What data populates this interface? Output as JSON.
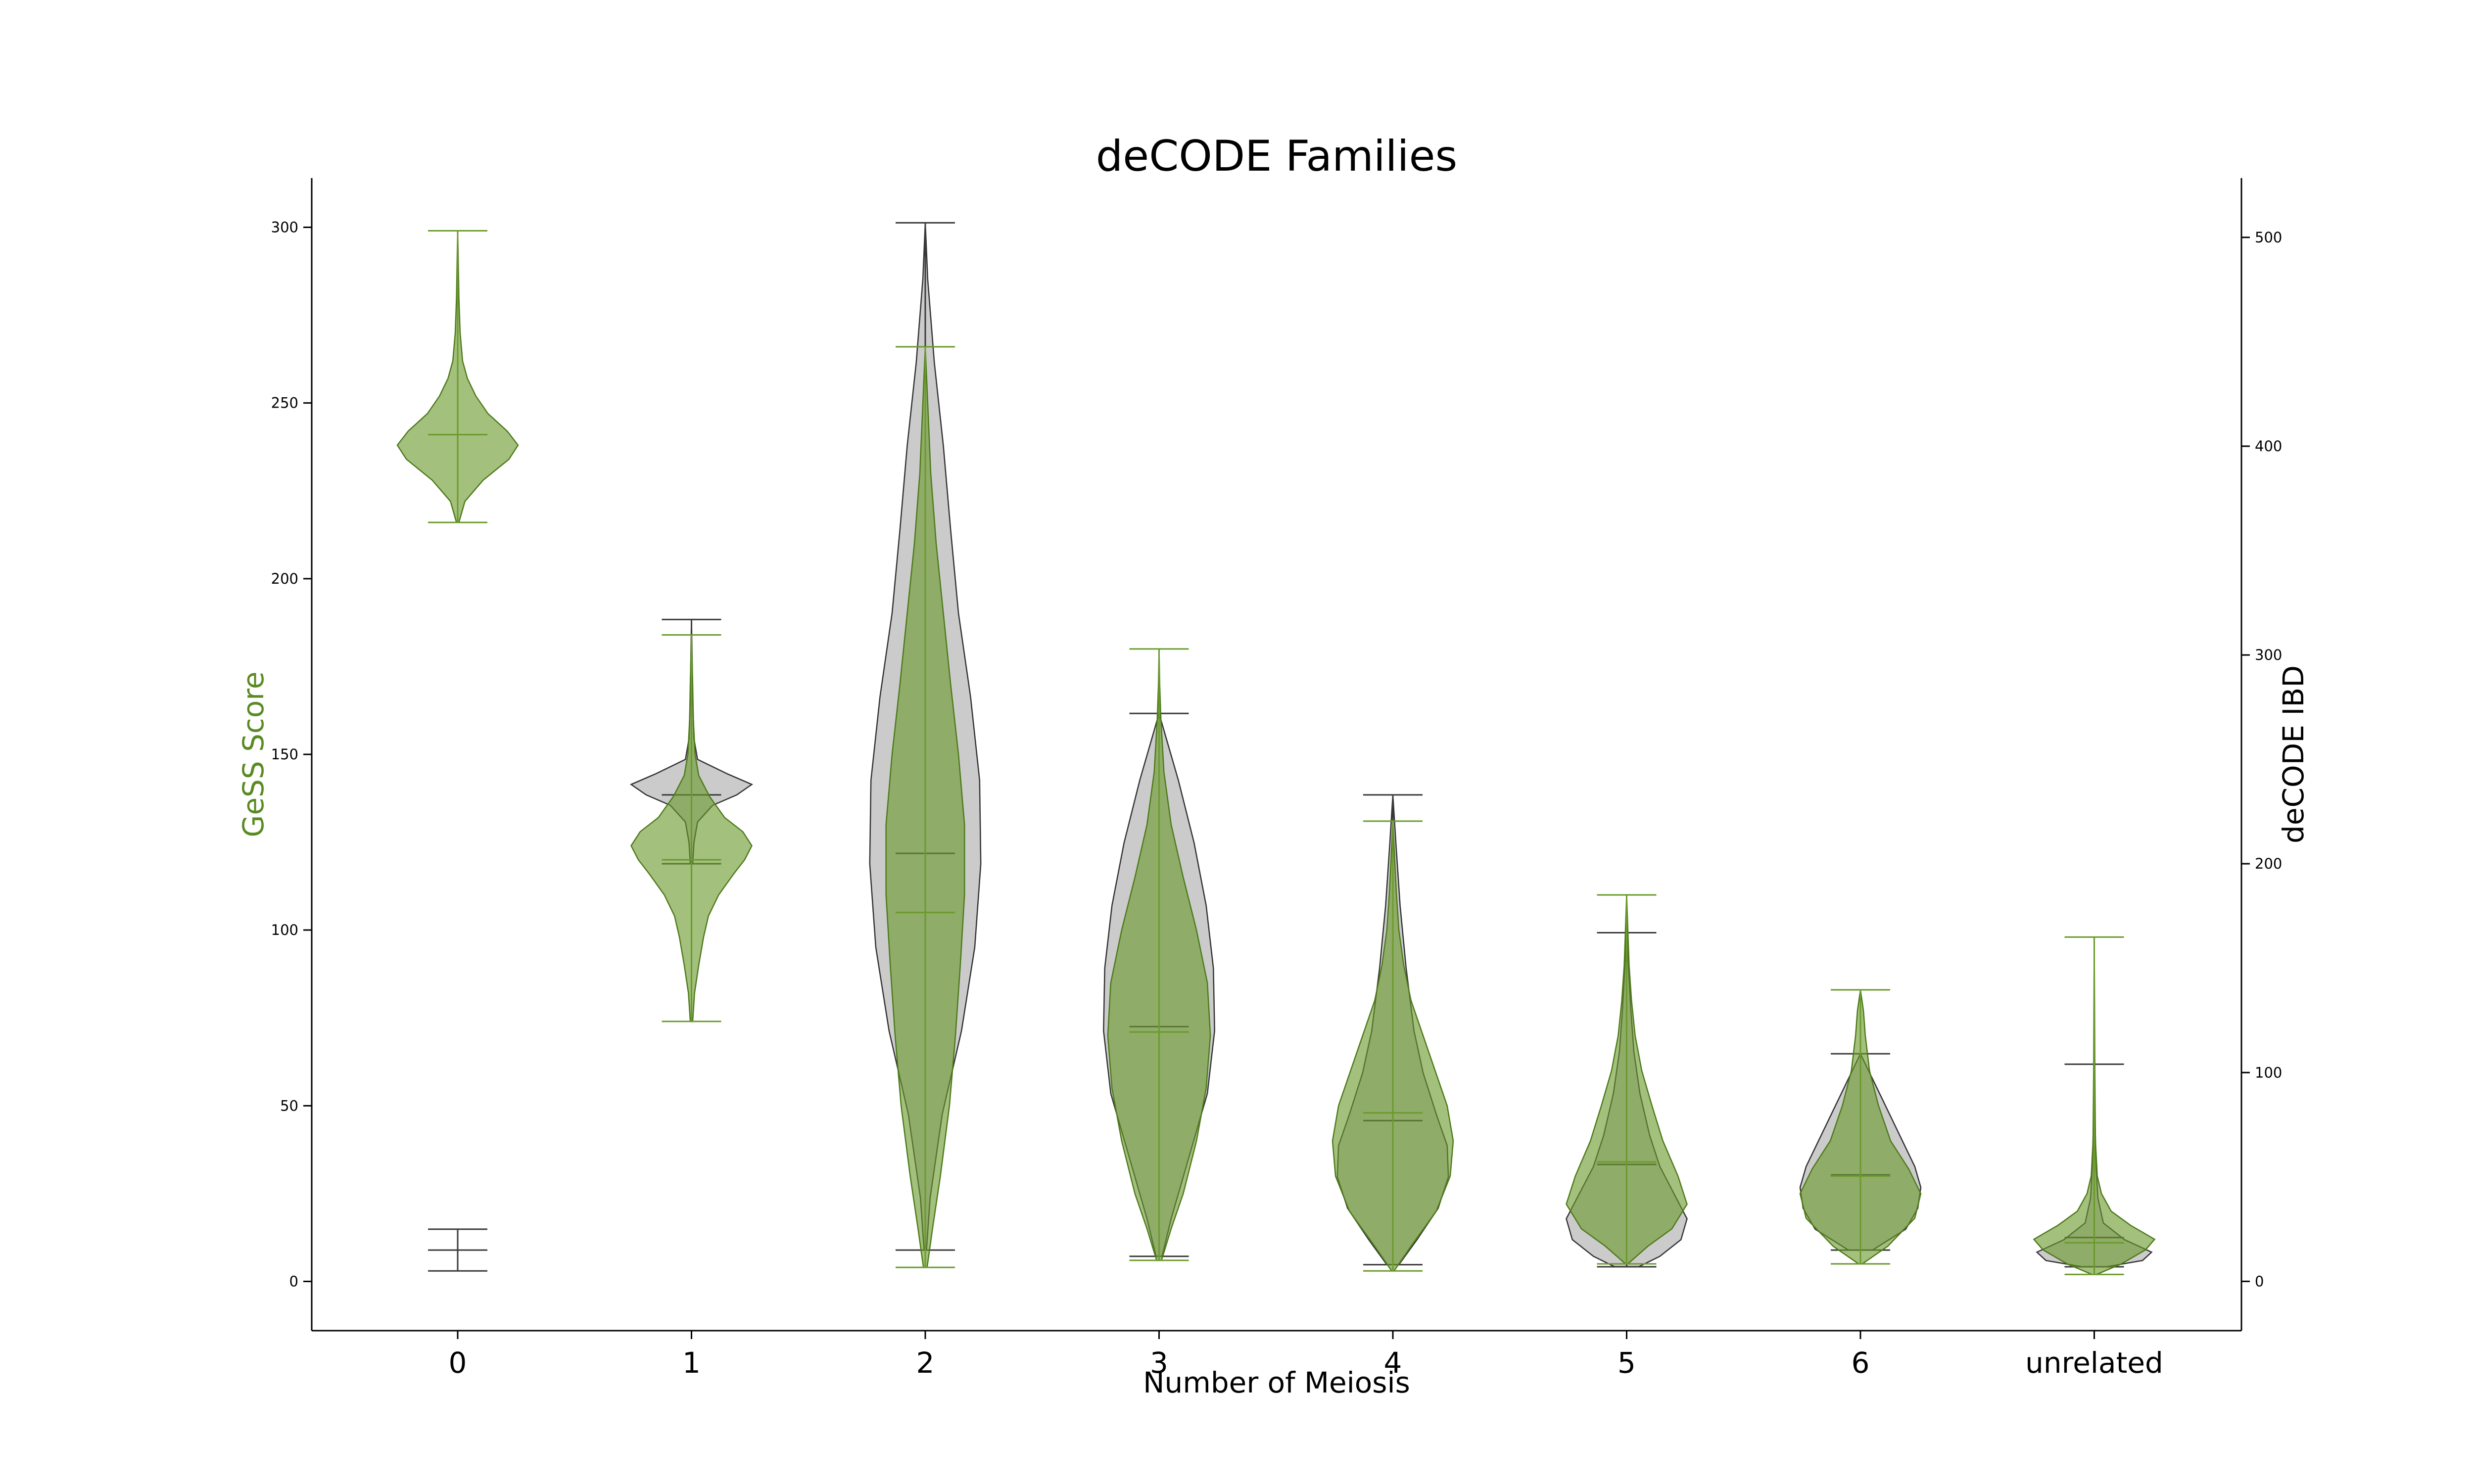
{
  "chart_data": {
    "type": "violin",
    "title": "deCODE Families",
    "xlabel": "Number of Meiosis",
    "ylabel_left": "GeSS Score",
    "ylabel_right": "deCODE IBD",
    "categories": [
      "0",
      "1",
      "2",
      "3",
      "4",
      "5",
      "6",
      "unrelated"
    ],
    "ylim_left": [
      -14,
      314
    ],
    "ylim_right": [
      -23.6,
      528.4
    ],
    "yticks_left": [
      0,
      50,
      100,
      150,
      200,
      250,
      300
    ],
    "yticks_right": [
      0,
      100,
      200,
      300,
      400,
      500
    ],
    "grid": false,
    "colors": {
      "gess": "#6b9a2c",
      "ibd": "#555555",
      "title": "#000000",
      "gess_label": "#5a8a22"
    },
    "series": [
      {
        "name": "GeSS Score",
        "axis": "left",
        "stats": [
          {
            "category": "0",
            "min": 216,
            "max": 299,
            "mean": 241
          },
          {
            "category": "1",
            "min": 74,
            "max": 184,
            "mean": 120
          },
          {
            "category": "2",
            "min": 4,
            "max": 266,
            "mean": 105
          },
          {
            "category": "3",
            "min": 6,
            "max": 180,
            "mean": 71
          },
          {
            "category": "4",
            "min": 3,
            "max": 131,
            "mean": 48
          },
          {
            "category": "5",
            "min": 5,
            "max": 110,
            "mean": 34
          },
          {
            "category": "6",
            "min": 5,
            "max": 83,
            "mean": 30
          },
          {
            "category": "unrelated",
            "min": 2,
            "max": 98,
            "mean": 11
          }
        ],
        "profiles": [
          [
            [
              216,
              0.02
            ],
            [
              222,
              0.12
            ],
            [
              228,
              0.42
            ],
            [
              234,
              0.85
            ],
            [
              238,
              1.0
            ],
            [
              242,
              0.82
            ],
            [
              247,
              0.5
            ],
            [
              252,
              0.3
            ],
            [
              257,
              0.16
            ],
            [
              262,
              0.08
            ],
            [
              270,
              0.04
            ],
            [
              280,
              0.02
            ],
            [
              290,
              0.01
            ],
            [
              299,
              0.0
            ]
          ],
          [
            [
              74,
              0.02
            ],
            [
              82,
              0.05
            ],
            [
              90,
              0.12
            ],
            [
              98,
              0.2
            ],
            [
              104,
              0.28
            ],
            [
              110,
              0.45
            ],
            [
              116,
              0.7
            ],
            [
              120,
              0.88
            ],
            [
              124,
              1.0
            ],
            [
              128,
              0.85
            ],
            [
              132,
              0.55
            ],
            [
              138,
              0.3
            ],
            [
              144,
              0.12
            ],
            [
              150,
              0.06
            ],
            [
              160,
              0.03
            ],
            [
              170,
              0.02
            ],
            [
              184,
              0.0
            ]
          ],
          [
            [
              4,
              0.03
            ],
            [
              15,
              0.12
            ],
            [
              30,
              0.25
            ],
            [
              50,
              0.4
            ],
            [
              70,
              0.5
            ],
            [
              90,
              0.58
            ],
            [
              110,
              0.65
            ],
            [
              130,
              0.65
            ],
            [
              150,
              0.55
            ],
            [
              170,
              0.42
            ],
            [
              190,
              0.3
            ],
            [
              210,
              0.18
            ],
            [
              230,
              0.09
            ],
            [
              250,
              0.04
            ],
            [
              266,
              0.0
            ]
          ],
          [
            [
              6,
              0.04
            ],
            [
              15,
              0.2
            ],
            [
              25,
              0.4
            ],
            [
              40,
              0.62
            ],
            [
              55,
              0.78
            ],
            [
              70,
              0.85
            ],
            [
              85,
              0.8
            ],
            [
              100,
              0.62
            ],
            [
              115,
              0.4
            ],
            [
              130,
              0.2
            ],
            [
              145,
              0.08
            ],
            [
              160,
              0.03
            ],
            [
              170,
              0.01
            ],
            [
              180,
              0.0
            ]
          ],
          [
            [
              3,
              0.02
            ],
            [
              10,
              0.3
            ],
            [
              20,
              0.72
            ],
            [
              30,
              0.95
            ],
            [
              40,
              1.0
            ],
            [
              50,
              0.9
            ],
            [
              60,
              0.7
            ],
            [
              70,
              0.5
            ],
            [
              80,
              0.3
            ],
            [
              90,
              0.18
            ],
            [
              100,
              0.1
            ],
            [
              110,
              0.06
            ],
            [
              120,
              0.03
            ],
            [
              131,
              0.0
            ]
          ],
          [
            [
              5,
              0.02
            ],
            [
              10,
              0.35
            ],
            [
              15,
              0.75
            ],
            [
              22,
              1.0
            ],
            [
              30,
              0.85
            ],
            [
              40,
              0.6
            ],
            [
              50,
              0.42
            ],
            [
              60,
              0.25
            ],
            [
              70,
              0.14
            ],
            [
              80,
              0.08
            ],
            [
              90,
              0.04
            ],
            [
              100,
              0.02
            ],
            [
              110,
              0.0
            ]
          ],
          [
            [
              5,
              0.03
            ],
            [
              10,
              0.45
            ],
            [
              18,
              0.9
            ],
            [
              25,
              1.0
            ],
            [
              32,
              0.8
            ],
            [
              40,
              0.5
            ],
            [
              50,
              0.3
            ],
            [
              60,
              0.15
            ],
            [
              70,
              0.08
            ],
            [
              77,
              0.05
            ],
            [
              83,
              0.0
            ]
          ],
          [
            [
              2,
              0.04
            ],
            [
              5,
              0.45
            ],
            [
              9,
              0.85
            ],
            [
              12,
              1.0
            ],
            [
              16,
              0.6
            ],
            [
              20,
              0.28
            ],
            [
              25,
              0.12
            ],
            [
              30,
              0.05
            ],
            [
              40,
              0.02
            ],
            [
              60,
              0.01
            ],
            [
              80,
              0.005
            ],
            [
              98,
              0.0
            ]
          ]
        ]
      },
      {
        "name": "deCODE IBD",
        "axis": "right",
        "stats": [
          {
            "category": "0",
            "min": 5,
            "max": 25,
            "mean": 15
          },
          {
            "category": "1",
            "min": 200,
            "max": 317,
            "mean": 233
          },
          {
            "category": "2",
            "min": 15,
            "max": 507,
            "mean": 205
          },
          {
            "category": "3",
            "min": 12,
            "max": 272,
            "mean": 122
          },
          {
            "category": "4",
            "min": 8,
            "max": 233,
            "mean": 77
          },
          {
            "category": "5",
            "min": 7,
            "max": 167,
            "mean": 56
          },
          {
            "category": "6",
            "min": 15,
            "max": 109,
            "mean": 51
          },
          {
            "category": "unrelated",
            "min": 7,
            "max": 104,
            "mean": 21
          }
        ],
        "profiles": [
          [],
          [
            [
              200,
              0.02
            ],
            [
              210,
              0.04
            ],
            [
              220,
              0.1
            ],
            [
              228,
              0.35
            ],
            [
              233,
              0.75
            ],
            [
              238,
              1.0
            ],
            [
              243,
              0.6
            ],
            [
              250,
              0.1
            ],
            [
              260,
              0.04
            ],
            [
              280,
              0.02
            ],
            [
              300,
              0.01
            ],
            [
              317,
              0.0
            ]
          ],
          [
            [
              15,
              0.02
            ],
            [
              40,
              0.08
            ],
            [
              80,
              0.28
            ],
            [
              120,
              0.6
            ],
            [
              160,
              0.82
            ],
            [
              200,
              0.92
            ],
            [
              240,
              0.9
            ],
            [
              280,
              0.75
            ],
            [
              320,
              0.55
            ],
            [
              360,
              0.42
            ],
            [
              400,
              0.3
            ],
            [
              440,
              0.15
            ],
            [
              480,
              0.04
            ],
            [
              507,
              0.0
            ]
          ],
          [
            [
              12,
              0.05
            ],
            [
              30,
              0.2
            ],
            [
              60,
              0.5
            ],
            [
              90,
              0.8
            ],
            [
              120,
              0.92
            ],
            [
              150,
              0.9
            ],
            [
              180,
              0.78
            ],
            [
              210,
              0.58
            ],
            [
              240,
              0.32
            ],
            [
              260,
              0.12
            ],
            [
              272,
              0.0
            ]
          ],
          [
            [
              8,
              0.1
            ],
            [
              20,
              0.4
            ],
            [
              35,
              0.75
            ],
            [
              50,
              0.92
            ],
            [
              65,
              0.9
            ],
            [
              80,
              0.72
            ],
            [
              100,
              0.5
            ],
            [
              120,
              0.35
            ],
            [
              150,
              0.22
            ],
            [
              180,
              0.12
            ],
            [
              210,
              0.05
            ],
            [
              233,
              0.0
            ]
          ],
          [
            [
              7,
              0.2
            ],
            [
              12,
              0.55
            ],
            [
              20,
              0.9
            ],
            [
              30,
              1.0
            ],
            [
              40,
              0.82
            ],
            [
              55,
              0.55
            ],
            [
              70,
              0.38
            ],
            [
              90,
              0.22
            ],
            [
              110,
              0.12
            ],
            [
              130,
              0.07
            ],
            [
              150,
              0.03
            ],
            [
              167,
              0.0
            ]
          ],
          [
            [
              15,
              0.2
            ],
            [
              25,
              0.75
            ],
            [
              35,
              0.95
            ],
            [
              45,
              1.0
            ],
            [
              55,
              0.9
            ],
            [
              70,
              0.65
            ],
            [
              85,
              0.4
            ],
            [
              100,
              0.15
            ],
            [
              109,
              0.0
            ]
          ],
          [
            [
              7,
              0.2
            ],
            [
              10,
              0.8
            ],
            [
              14,
              0.95
            ],
            [
              20,
              0.5
            ],
            [
              28,
              0.15
            ],
            [
              40,
              0.06
            ],
            [
              55,
              0.03
            ],
            [
              75,
              0.015
            ],
            [
              104,
              0.0
            ]
          ]
        ]
      }
    ]
  }
}
